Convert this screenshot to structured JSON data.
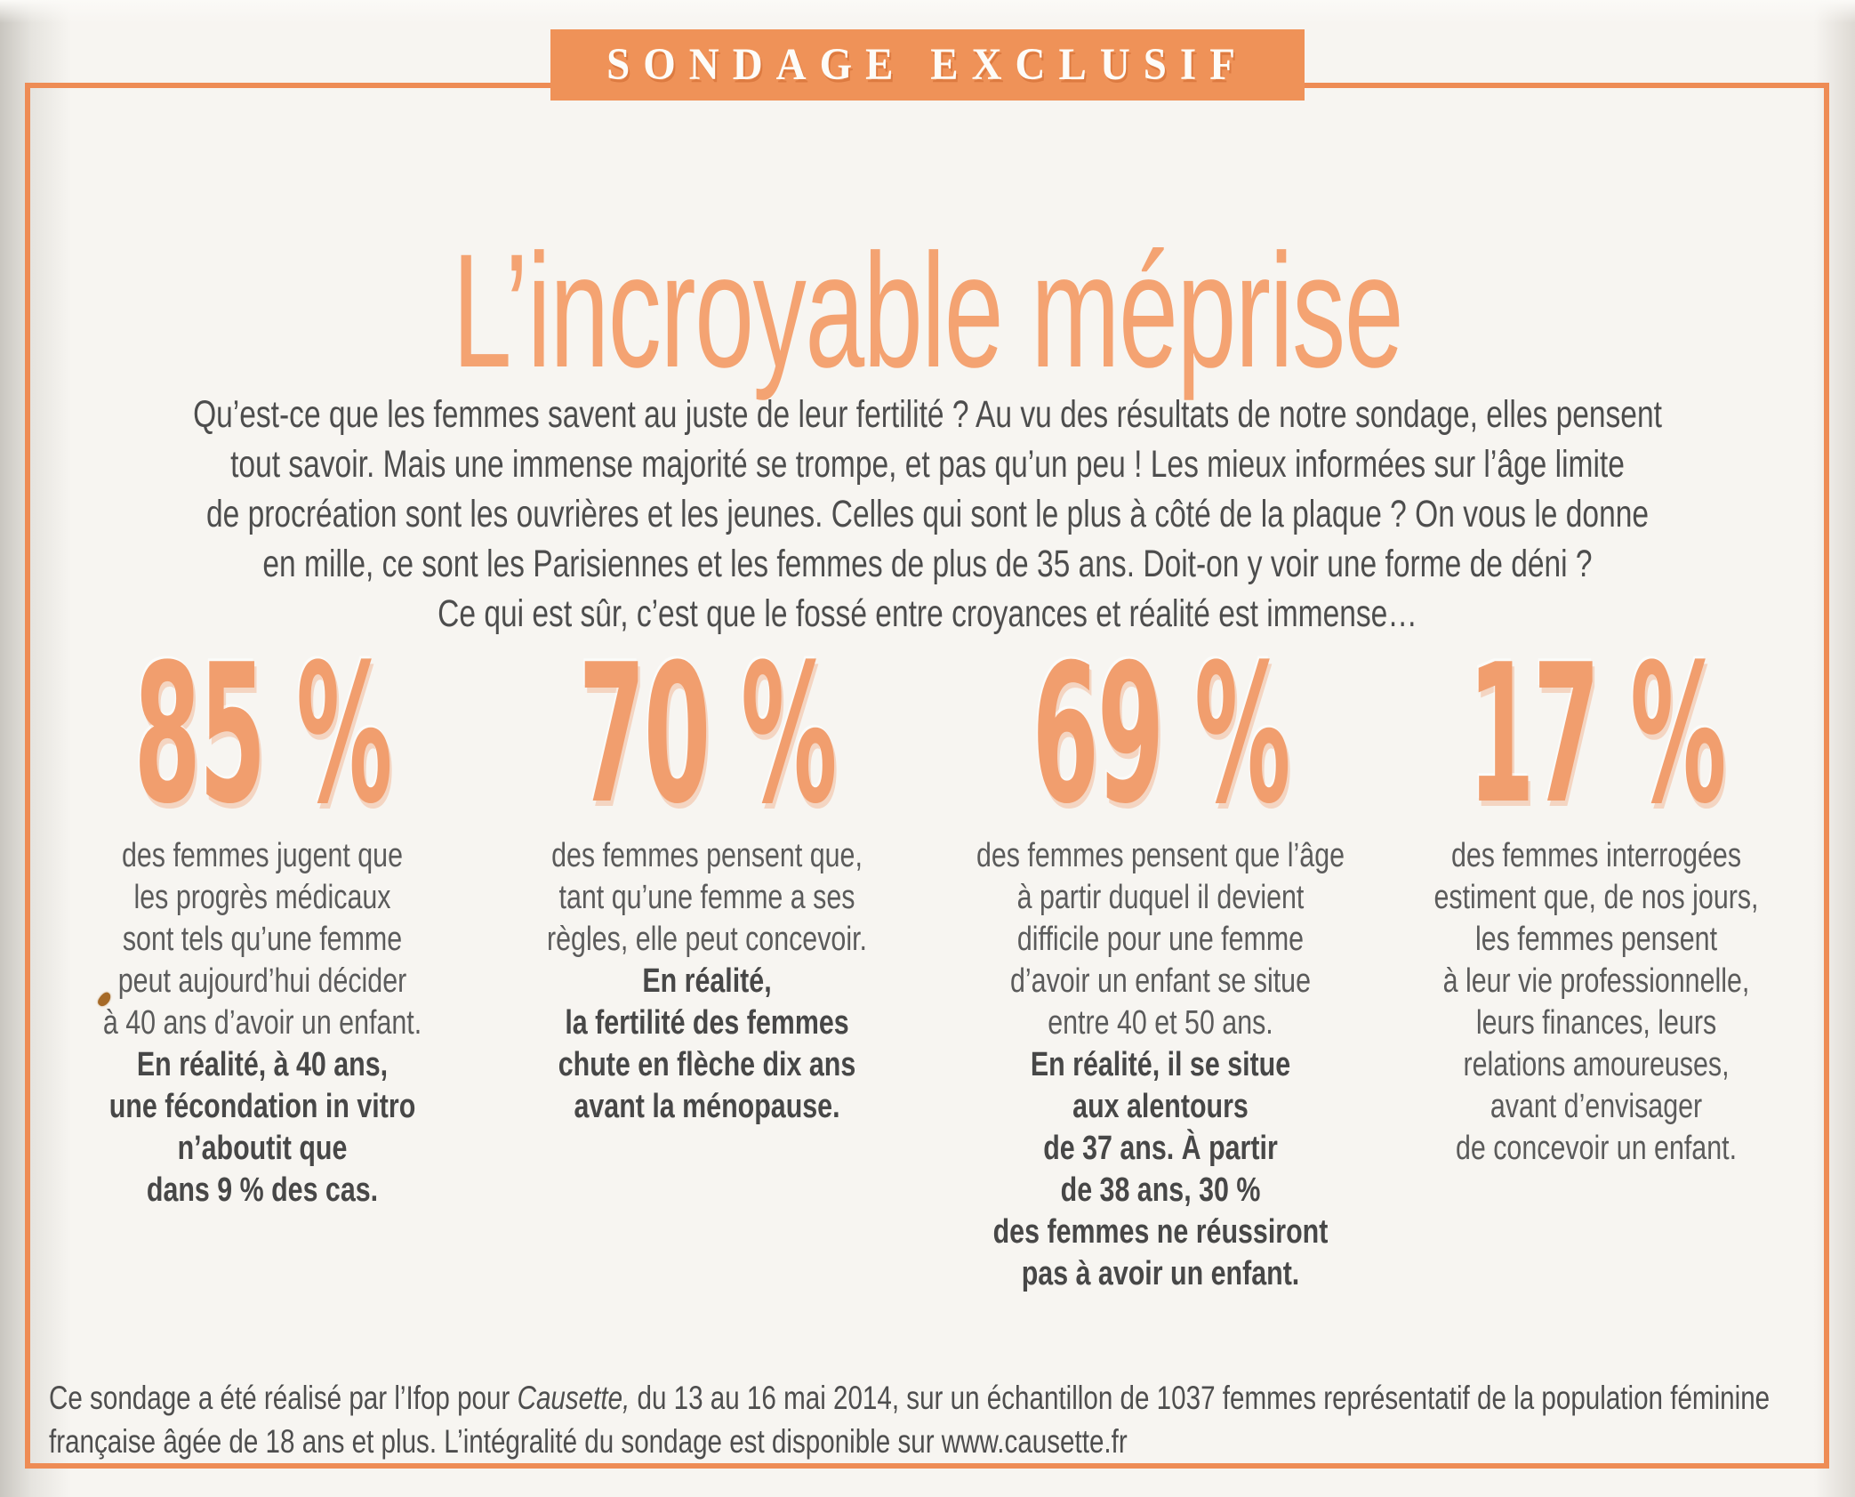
{
  "page": {
    "badge_label": "SONDAGE EXCLUSIF",
    "title": "L’incroyable méprise"
  },
  "intro": {
    "text": "Qu’est-ce que les femmes savent au juste de leur fertilité ? Au vu des résultats de notre sondage, elles pensent\ntout savoir. Mais une immense majorité se trompe, et pas qu’un peu ! Les mieux informées sur l’âge limite\nde procréation sont les ouvrières et les jeunes. Celles qui sont le plus à côté de la plaque ? On vous le donne\nen mille, ce sont les Parisiennes et les femmes de plus de 35 ans. Doit-on y voir une forme de déni ?\nCe qui est sûr, c’est que le fossé entre croyances et réalité est immense…"
  },
  "stats": [
    {
      "value": "85 %",
      "belief": "des femmes jugent que\nles progrès médicaux\nsont tels qu’une femme\npeut aujourd’hui décider\nà 40 ans d’avoir un enfant.",
      "reality": "En réalité, à 40 ans,\nune fécondation in vitro\nn’aboutit que\ndans 9 % des cas."
    },
    {
      "value": "70 %",
      "belief": "des femmes pensent que,\ntant qu’une femme a ses\nrègles, elle peut concevoir.",
      "reality": "En réalité,\nla fertilité des femmes\nchute en flèche dix ans\navant la ménopause."
    },
    {
      "value": "69 %",
      "belief": "des femmes pensent que l’âge\nà partir duquel il devient\ndifficile pour une femme\nd’avoir un enfant se situe\nentre 40 et 50 ans.",
      "reality": "En réalité, il se situe\naux alentours\nde 37 ans. À partir\nde 38 ans, 30 %\ndes femmes ne réussiront\npas à avoir un enfant."
    },
    {
      "value": "17 %",
      "belief": "des femmes interrogées\nestiment que, de nos jours,\nles femmes pensent\nà leur vie professionnelle,\nleurs finances, leurs\nrelations amoureuses,\navant d’envisager\nde concevoir un enfant.",
      "reality": ""
    }
  ],
  "footer": {
    "part1": "Ce sondage a été réalisé par l’Ifop pour ",
    "magazine": "Causette,",
    "part2": " du 13 au 16 mai 2014, sur un échantillon de 1037 femmes représentatif de la population féminine\nfrançaise âgée de 18 ans et plus. L’intégralité du sondage est disponible sur www.causette.fr"
  },
  "colors": {
    "accent_border": "#ee8c55",
    "badge_background": "#ef9258",
    "title_orange": "#f4a372",
    "number_orange": "#f19e6e",
    "body_text": "#4d4d4d",
    "paper": "#f7f5f1"
  }
}
